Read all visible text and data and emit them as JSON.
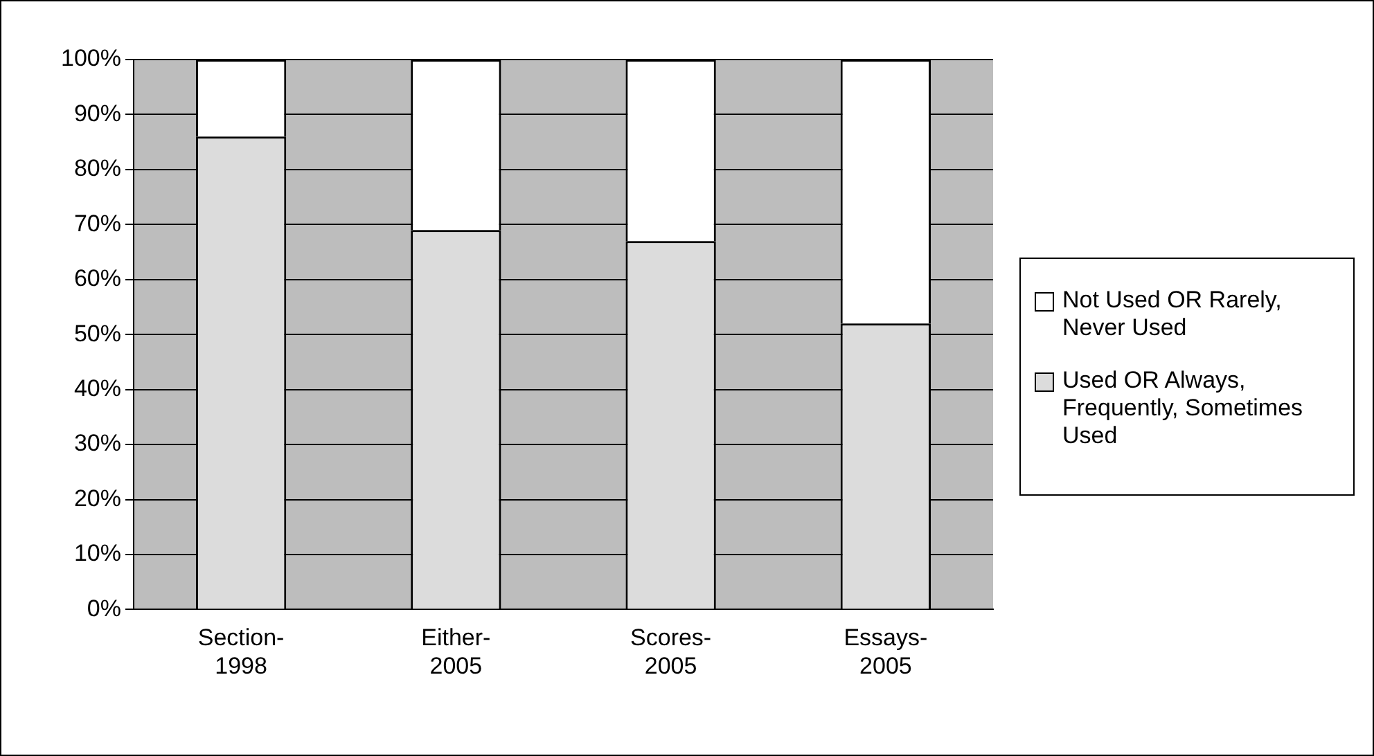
{
  "chart_data": {
    "type": "bar",
    "stacked": true,
    "categories": [
      "Section-1998",
      "Either-2005",
      "Scores-2005",
      "Essays-2005"
    ],
    "series": [
      {
        "name": "Used OR Always, Frequently, Sometimes Used",
        "color": "#dcdcdc",
        "values": [
          86,
          69,
          67,
          52
        ]
      },
      {
        "name": "Not Used OR Rarely, Never Used",
        "color": "#ffffff",
        "values": [
          14,
          31,
          33,
          48
        ]
      }
    ],
    "ylim": [
      0,
      100
    ],
    "yticks": [
      {
        "value": 0,
        "label": "0%"
      },
      {
        "value": 10,
        "label": "10%"
      },
      {
        "value": 20,
        "label": "20%"
      },
      {
        "value": 30,
        "label": "30%"
      },
      {
        "value": 40,
        "label": "40%"
      },
      {
        "value": 50,
        "label": "50%"
      },
      {
        "value": 60,
        "label": "60%"
      },
      {
        "value": 70,
        "label": "70%"
      },
      {
        "value": 80,
        "label": "80%"
      },
      {
        "value": 90,
        "label": "90%"
      },
      {
        "value": 100,
        "label": "100%"
      }
    ],
    "grid": "y",
    "legend": "right"
  }
}
